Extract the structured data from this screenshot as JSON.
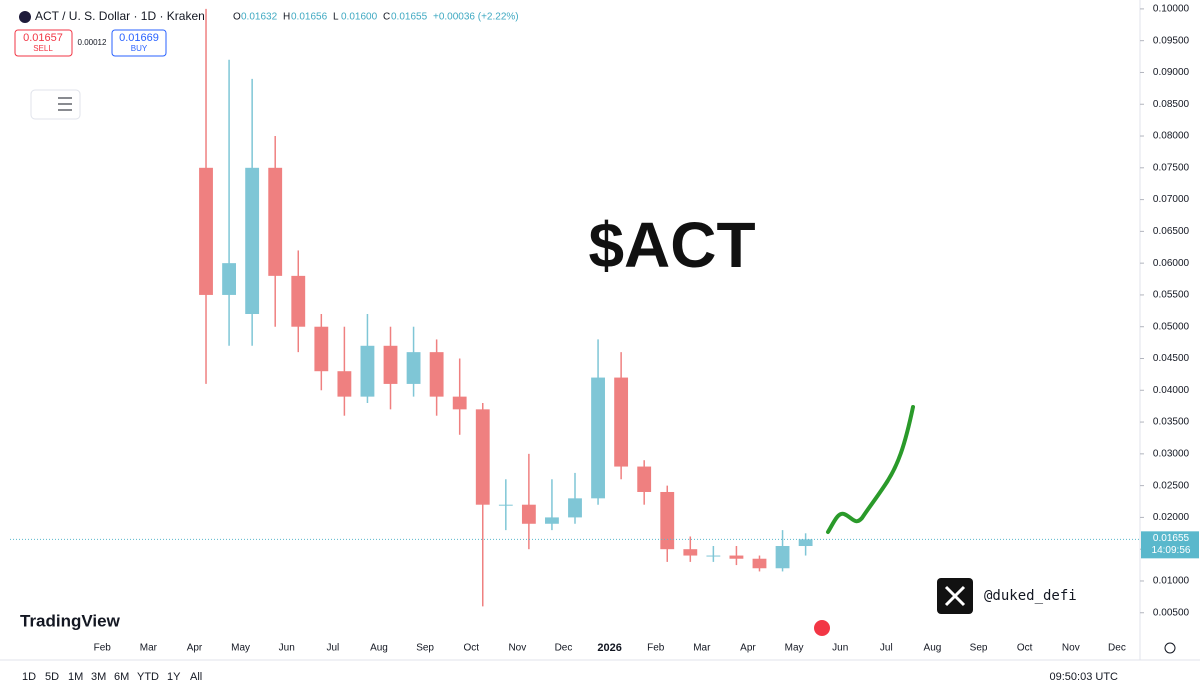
{
  "header": {
    "symbol": "ACT / U. S. Dollar · 1D · Kraken",
    "ohlc": [
      {
        "key": "O",
        "value": "0.01632"
      },
      {
        "key": "H",
        "value": "0.01656"
      },
      {
        "key": "L",
        "value": "0.01600"
      },
      {
        "key": "C",
        "value": "0.01655"
      }
    ],
    "change": "+0.00036 (+2.22%)",
    "sell": {
      "price": "0.01657",
      "label": "SELL"
    },
    "spread": "0.00012",
    "buy": {
      "price": "0.01669",
      "label": "BUY"
    }
  },
  "annotation": "$ACT",
  "handle": "@duked_defi",
  "brand": "TradingView",
  "toolbar": {
    "ranges": [
      "1D",
      "5D",
      "1M",
      "3M",
      "6M",
      "YTD",
      "1Y",
      "All"
    ],
    "clock": "09:50:03 UTC"
  },
  "chart_data": {
    "type": "candlestick",
    "categories": [
      null,
      null,
      null,
      null,
      "Feb",
      null,
      "Mar",
      null,
      "Apr",
      null,
      "May",
      null,
      "Jun",
      null,
      "Jul",
      null,
      "Aug",
      null,
      "Sep",
      null,
      "Oct",
      null,
      "Nov",
      null,
      "Dec",
      null,
      "2026",
      null,
      "Feb",
      null,
      "Mar",
      null,
      "Apr",
      null,
      "May",
      null,
      "Jun",
      null,
      "Jul",
      null,
      "Aug",
      null,
      "Sep",
      null,
      "Oct",
      null,
      "Nov",
      null,
      "Dec"
    ],
    "open": [
      null,
      null,
      null,
      null,
      null,
      null,
      null,
      null,
      0.075,
      0.055,
      0.052,
      0.075,
      0.058,
      0.05,
      0.043,
      0.039,
      0.047,
      0.041,
      0.046,
      0.039,
      0.037,
      0.022,
      0.022,
      0.019,
      0.02,
      0.023,
      0.042,
      0.028,
      0.024,
      0.015,
      0.014,
      0.014,
      0.0135,
      0.012,
      0.0155,
      null,
      null,
      null,
      null,
      null,
      null,
      null,
      null,
      null,
      null,
      null,
      null,
      null,
      null
    ],
    "high": [
      null,
      null,
      null,
      null,
      null,
      null,
      null,
      null,
      0.1,
      0.092,
      0.089,
      0.08,
      0.062,
      0.052,
      0.05,
      0.052,
      0.05,
      0.05,
      0.048,
      0.045,
      0.038,
      0.026,
      0.03,
      0.026,
      0.027,
      0.048,
      0.046,
      0.029,
      0.025,
      0.017,
      0.0155,
      0.0155,
      0.014,
      0.018,
      0.0175,
      null,
      null,
      null,
      null,
      null,
      null,
      null,
      null,
      null,
      null,
      null,
      null,
      null,
      null
    ],
    "low": [
      null,
      null,
      null,
      null,
      null,
      null,
      null,
      null,
      0.041,
      0.047,
      0.047,
      0.05,
      0.046,
      0.04,
      0.036,
      0.038,
      0.037,
      0.039,
      0.036,
      0.033,
      0.006,
      0.018,
      0.015,
      0.018,
      0.019,
      0.022,
      0.026,
      0.022,
      0.013,
      0.013,
      0.013,
      0.0125,
      0.0115,
      0.0115,
      0.014,
      null,
      null,
      null,
      null,
      null,
      null,
      null,
      null,
      null,
      null,
      null,
      null,
      null,
      null
    ],
    "close": [
      null,
      null,
      null,
      null,
      null,
      null,
      null,
      null,
      0.055,
      0.06,
      0.075,
      0.058,
      0.05,
      0.043,
      0.039,
      0.047,
      0.041,
      0.046,
      0.039,
      0.037,
      0.022,
      0.022,
      0.019,
      0.02,
      0.023,
      0.042,
      0.028,
      0.024,
      0.015,
      0.014,
      0.014,
      0.0135,
      0.012,
      0.0155,
      0.01655,
      null,
      null,
      null,
      null,
      null,
      null,
      null,
      null,
      null,
      null,
      null,
      null,
      null,
      null
    ],
    "up_color": "#7fc6d6",
    "down_color": "#ef8080",
    "ylim": [
      0.0015,
      0.1014
    ],
    "yticks": [
      {
        "value": 0.005,
        "label": "0.00500"
      },
      {
        "value": 0.01,
        "label": "0.01000"
      },
      {
        "value": 0.015,
        "label": "0.01500"
      },
      {
        "value": 0.02,
        "label": "0.02000"
      },
      {
        "value": 0.025,
        "label": "0.02500"
      },
      {
        "value": 0.03,
        "label": "0.03000"
      },
      {
        "value": 0.035,
        "label": "0.03500"
      },
      {
        "value": 0.04,
        "label": "0.04000"
      },
      {
        "value": 0.045,
        "label": "0.04500"
      },
      {
        "value": 0.05,
        "label": "0.05000"
      },
      {
        "value": 0.055,
        "label": "0.05500"
      },
      {
        "value": 0.06,
        "label": "0.06000"
      },
      {
        "value": 0.065,
        "label": "0.06500"
      },
      {
        "value": 0.07,
        "label": "0.07000"
      },
      {
        "value": 0.075,
        "label": "0.07500"
      },
      {
        "value": 0.08,
        "label": "0.08000"
      },
      {
        "value": 0.085,
        "label": "0.08500"
      },
      {
        "value": 0.09,
        "label": "0.09000"
      },
      {
        "value": 0.095,
        "label": "0.09500"
      },
      {
        "value": 0.1,
        "label": "0.10000"
      }
    ],
    "last_price": {
      "value": 0.01655,
      "label": "0.01655",
      "countdown": "14:09:56"
    }
  }
}
